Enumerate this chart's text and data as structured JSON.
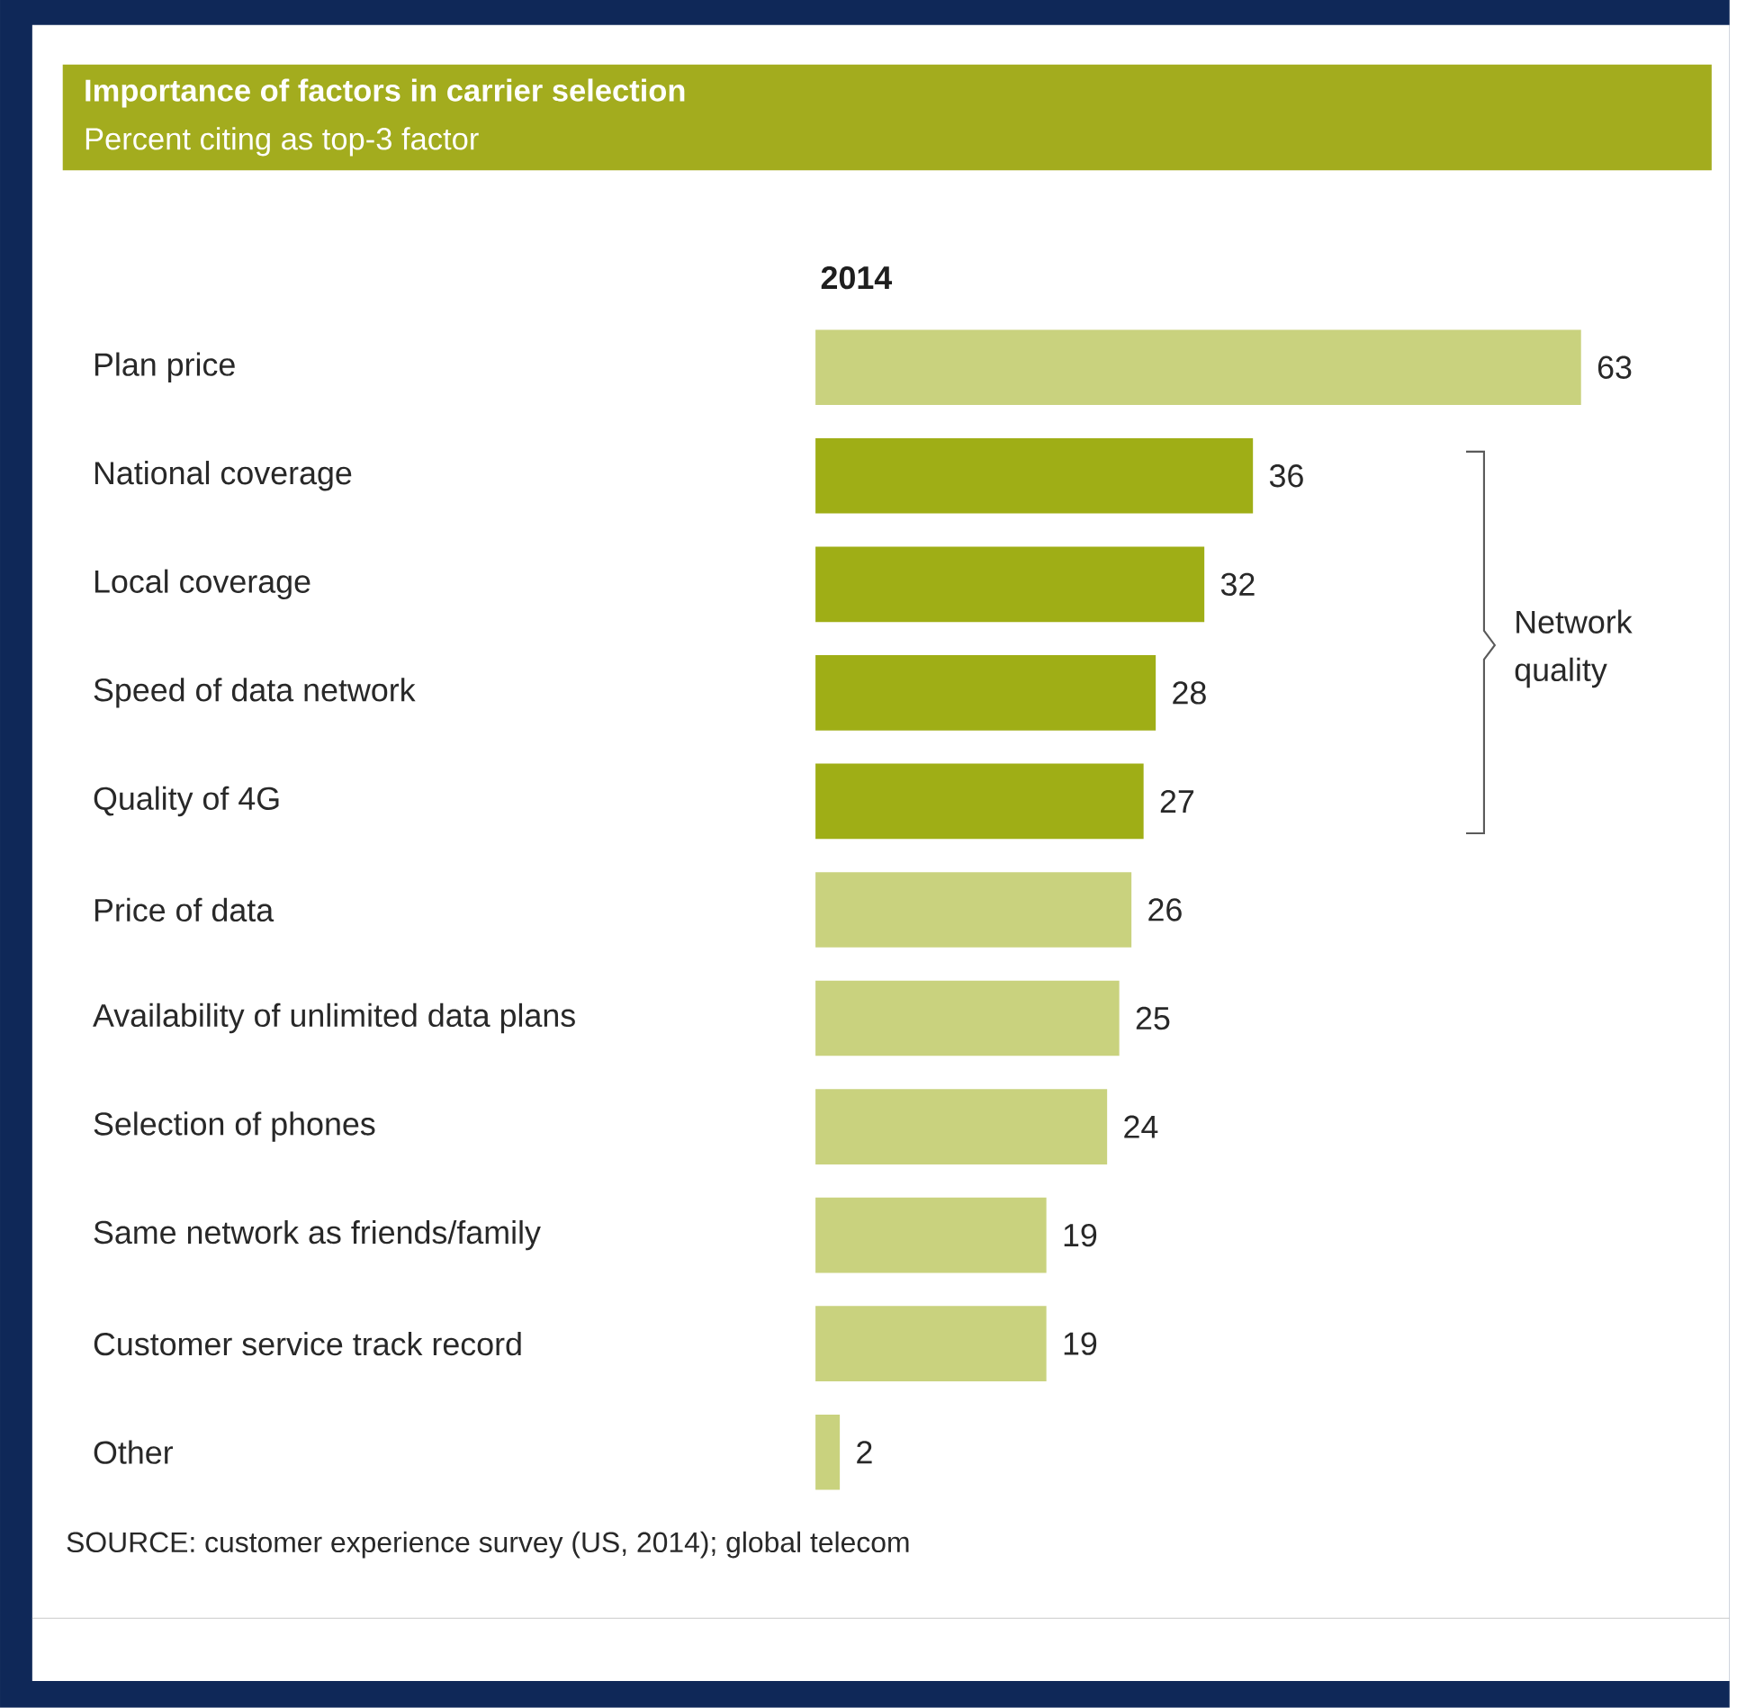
{
  "chart_data": {
    "type": "bar",
    "orientation": "horizontal",
    "title": "Importance of factors in carrier selection",
    "subtitle": "Percent citing as top-3 factor",
    "xlabel": "2014",
    "categories": [
      "Plan price",
      "National coverage",
      "Local coverage",
      "Speed of data network",
      "Quality of 4G",
      "Price of data",
      "Availability of unlimited data plans",
      "Selection of phones",
      "Same network as friends/family",
      "Customer service track record",
      "Other"
    ],
    "values": [
      63,
      36,
      32,
      28,
      27,
      26,
      25,
      24,
      19,
      19,
      2
    ],
    "colors": [
      "#c9d27e",
      "#9fae16",
      "#9fae16",
      "#9fae16",
      "#9fae16",
      "#c9d27e",
      "#c9d27e",
      "#c9d27e",
      "#c9d27e",
      "#c9d27e",
      "#c9d27e"
    ],
    "data_labels": true,
    "annotations": [
      "Network quality",
      "SOURCE: customer experience survey (US, 2014); global telecom"
    ]
  }
}
